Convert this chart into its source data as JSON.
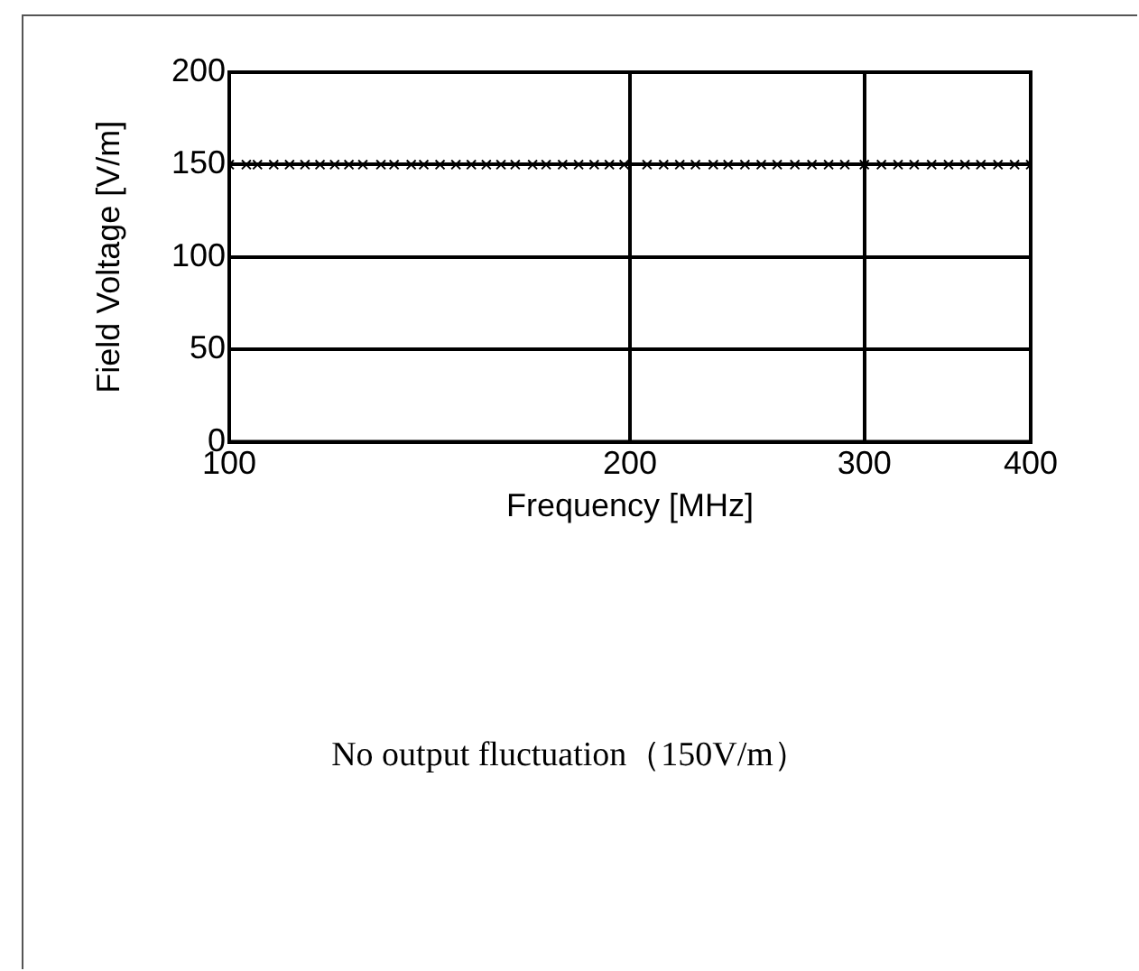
{
  "chart_data": {
    "type": "scatter",
    "xlabel": "Frequency [MHz]",
    "ylabel": "Field Voltage [V/m]",
    "x": [
      100,
      103,
      105,
      108,
      111,
      114,
      117,
      120,
      123,
      126,
      130,
      133,
      137,
      140,
      144,
      148,
      152,
      156,
      160,
      164,
      169,
      173,
      178,
      183,
      188,
      193,
      198,
      206,
      212,
      218,
      224,
      231,
      237,
      244,
      251,
      258,
      266,
      274,
      282,
      290,
      300,
      309,
      318,
      327,
      337,
      347,
      357,
      367,
      378,
      389,
      400
    ],
    "series": [
      {
        "color": "#000000",
        "values": [
          150,
          150,
          150,
          150,
          150,
          150,
          150,
          150,
          150,
          150,
          150,
          150,
          150,
          150,
          150,
          150,
          150,
          150,
          150,
          150,
          150,
          150,
          150,
          150,
          150,
          150,
          150,
          150,
          150,
          150,
          150,
          150,
          150,
          150,
          150,
          150,
          150,
          150,
          150,
          150,
          150,
          150,
          150,
          150,
          150,
          150,
          150,
          150,
          150,
          150,
          150
        ]
      }
    ],
    "xlim": [
      100,
      400
    ],
    "xticks": [
      100,
      200,
      300,
      400
    ],
    "ylim": [
      0,
      200
    ],
    "yticks": [
      0,
      50,
      100,
      150,
      200
    ],
    "log": "x",
    "grid": true,
    "marker": "cross",
    "annotations": [
      "No output fluctuation（150V/m）"
    ]
  }
}
